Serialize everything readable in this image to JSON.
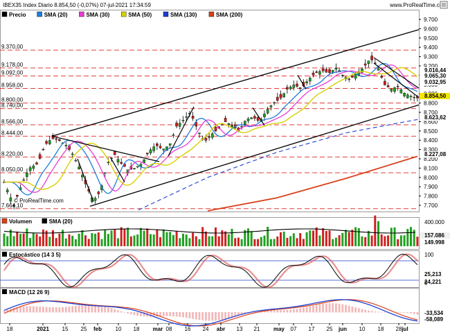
{
  "header": {
    "title": "IBEX35 Index Diario 8.854,50 (-0,07%) 07-jul-2021 17:34:59",
    "watermark": "www.ProRealTime.com"
  },
  "chart_data": [
    {
      "type": "candlestick",
      "panel": "price",
      "legend": [
        {
          "name": "Precio",
          "color": "#000000"
        },
        {
          "name": "SMA (20)",
          "color": "#1e7ddc"
        },
        {
          "name": "SMA (30)",
          "color": "#e83cd2"
        },
        {
          "name": "SMA (50)",
          "color": "#d8cf00"
        },
        {
          "name": "SMA (130)",
          "color": "#1c3fd0"
        },
        {
          "name": "SMA (200)",
          "color": "#d9401b"
        }
      ],
      "watermark": "© ProRealTime.com",
      "ylim": [
        7600,
        9800
      ],
      "right_axis_ticks": [
        "9.700",
        "9.600",
        "9.500",
        "9.400",
        "9.300",
        "9.200",
        "9.100",
        "9.000",
        "8.900",
        "8.800",
        "8.700",
        "8.600",
        "8.500",
        "8.400",
        "8.300",
        "8.200",
        "8.100",
        "8.000",
        "7.900",
        "7.800",
        "7.700"
      ],
      "left_levels": [
        {
          "label": "9.370,00",
          "value": 9370
        },
        {
          "label": "9.178,00",
          "value": 9178
        },
        {
          "label": "9.092,00",
          "value": 9092
        },
        {
          "label": "8.958,00",
          "value": 8958
        },
        {
          "label": "8.800,00",
          "value": 8800
        },
        {
          "label": "8.740,00",
          "value": 8740
        },
        {
          "label": "8.566,00",
          "value": 8566
        },
        {
          "label": "8.444,00",
          "value": 8444
        },
        {
          "label": "8.220,00",
          "value": 8220
        },
        {
          "label": "8.050,00",
          "value": 8050
        },
        {
          "label": "7.664,10",
          "value": 7664.1
        }
      ],
      "last_values": [
        {
          "label": "9.016,44",
          "value": 9016.44,
          "color": "#e83cd2"
        },
        {
          "label": "9.065,30",
          "value": 9065.3,
          "color": "#1c3fd0"
        },
        {
          "label": "9.032,95",
          "value": 9032.95,
          "color": "#1e7ddc"
        },
        {
          "label": "8.854,50",
          "value": 8854.5,
          "color": "#f3e600"
        },
        {
          "label": "8.623,62",
          "value": 8623.62,
          "color": "#1c3fd0"
        },
        {
          "label": "8.227,08",
          "value": 8227.08,
          "color": "#d9401b"
        }
      ]
    },
    {
      "type": "bar",
      "panel": "volume",
      "legend": [
        {
          "name": "Volumen",
          "color": "#d9401b"
        },
        {
          "name": "SMA (20)",
          "color": "#000000"
        }
      ],
      "right_axis_ticks": [
        "400.000"
      ],
      "last_values": [
        {
          "label": "157.086",
          "color": "#ffffff",
          "bg": "#f0f0f0"
        },
        {
          "label": "149.998",
          "color": "#d9401b"
        }
      ]
    },
    {
      "type": "line",
      "panel": "stochastic",
      "legend": [
        {
          "name": "Estocástico (14 3 5)",
          "color": "#000000"
        }
      ],
      "right_axis_ticks": [
        "100",
        "0"
      ],
      "last_values": [
        {
          "label": "25,213",
          "color": "#000000"
        },
        {
          "label": "24,221",
          "color": "#d9401b"
        }
      ]
    },
    {
      "type": "line",
      "panel": "macd",
      "legend": [
        {
          "name": "MACD (12 26 9)",
          "color": "#000000"
        }
      ],
      "last_values": [
        {
          "label": "-33,534",
          "color": "#d9401b"
        },
        {
          "label": "-58,089",
          "color": "#1c3fd0"
        }
      ]
    }
  ],
  "x_axis": {
    "labels": [
      {
        "text": "18",
        "bold": false
      },
      {
        "text": "2021",
        "bold": true
      },
      {
        "text": "15",
        "bold": false
      },
      {
        "text": "25",
        "bold": false
      },
      {
        "text": "feb",
        "bold": true
      },
      {
        "text": "10",
        "bold": false
      },
      {
        "text": "18",
        "bold": false
      },
      {
        "text": "mar",
        "bold": true
      },
      {
        "text": "08",
        "bold": false
      },
      {
        "text": "16",
        "bold": false
      },
      {
        "text": "24",
        "bold": false
      },
      {
        "text": "abr",
        "bold": true
      },
      {
        "text": "13",
        "bold": false
      },
      {
        "text": "21",
        "bold": false
      },
      {
        "text": "may",
        "bold": true
      },
      {
        "text": "07",
        "bold": false
      },
      {
        "text": "17",
        "bold": false
      },
      {
        "text": "25",
        "bold": false
      },
      {
        "text": "jun",
        "bold": true
      },
      {
        "text": "10",
        "bold": false
      },
      {
        "text": "18",
        "bold": false
      },
      {
        "text": "28",
        "bold": false
      },
      {
        "text": "jul",
        "bold": true
      }
    ]
  },
  "ui": {
    "icons": [
      "price-list-icon",
      "info-icon",
      "chart-menu-icon"
    ]
  }
}
